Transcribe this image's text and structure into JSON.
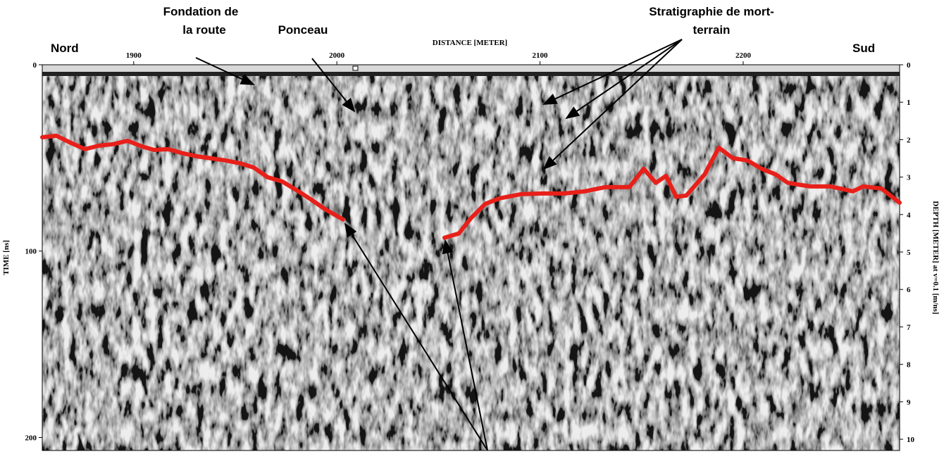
{
  "chart_data": {
    "type": "radargram",
    "xlabel": "DISTANCE [METER]",
    "ylabel": "TIME [ns]",
    "y2label": "DEPTH [METER] at v=0.1 [m/ns]",
    "xlim": [
      1855,
      2277
    ],
    "xticks": [
      1900,
      2000,
      2100,
      2200
    ],
    "ylim": [
      0,
      207
    ],
    "yticks": [
      0,
      100,
      200
    ],
    "y2lim": [
      0,
      10.3
    ],
    "y2ticks": [
      0,
      1,
      2,
      3,
      4,
      5,
      6,
      7,
      8,
      9,
      10
    ],
    "x": [
      1855,
      1862,
      1869,
      1876,
      1883,
      1890,
      1897,
      1904,
      1910,
      1917,
      1924,
      1931,
      1938,
      1945,
      1952,
      1959,
      1966,
      1973,
      1980,
      1987,
      1994,
      2003,
      2028,
      2053,
      2060,
      2066,
      2073,
      2080,
      2091,
      2101,
      2112,
      2122,
      2132,
      2144,
      2151,
      2157,
      2162,
      2167,
      2172,
      2181,
      2188,
      2195,
      2202,
      2209,
      2216,
      2222,
      2233,
      2243,
      2254,
      2259,
      2268,
      2277
    ],
    "series": [
      {
        "color": "#e8201a",
        "values": [
          38.9,
          38.1,
          41.9,
          45.3,
          43.4,
          42.6,
          40.8,
          43.8,
          45.7,
          45.3,
          47.5,
          49.1,
          50.2,
          51.3,
          52.8,
          55.1,
          60.4,
          62.6,
          67.2,
          72.1,
          77.4,
          83.0,
          null,
          92.8,
          90.6,
          82.3,
          74.7,
          71.7,
          69.4,
          69.1,
          69.1,
          67.9,
          65.7,
          65.7,
          55.8,
          63.4,
          59.6,
          70.9,
          70.2,
          58.9,
          44.5,
          50.2,
          51.3,
          55.8,
          58.9,
          63.4,
          65.3,
          65.3,
          67.9,
          65.3,
          66.4,
          74.0
        ]
      }
    ],
    "annotations": {
      "nord": "Nord",
      "sud": "Sud",
      "fondation": [
        "Fondation de",
        "la route"
      ],
      "ponceau": "Ponceau",
      "stratigraphie": [
        "Stratigraphie de mort-",
        "terrain"
      ]
    }
  }
}
